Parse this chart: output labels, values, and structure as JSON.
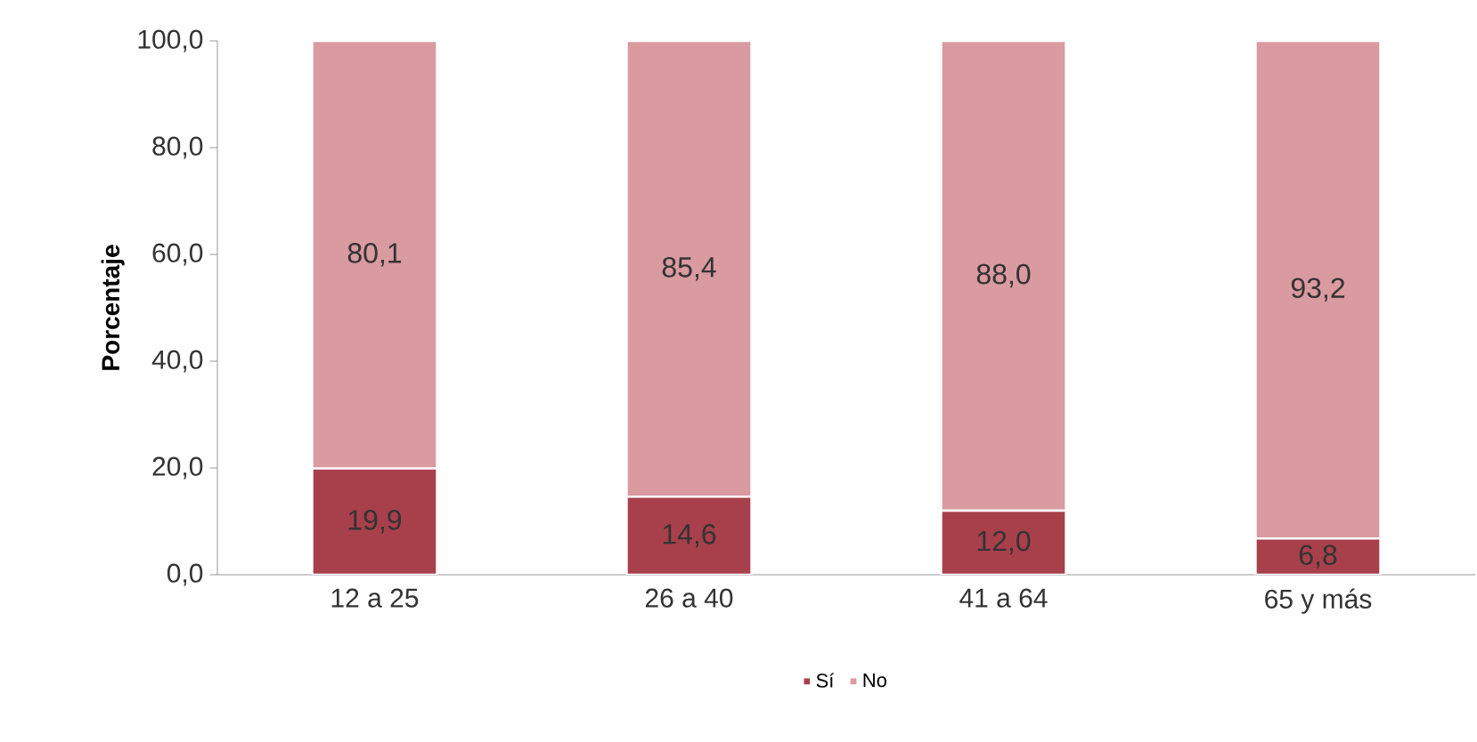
{
  "chart_data": {
    "type": "bar",
    "stacked": true,
    "ylabel": "Porcentaje",
    "categories": [
      "12 a 25",
      "26 a 40",
      "41 a 64",
      "65 y más"
    ],
    "series": [
      {
        "name": "Sí",
        "color": "#a8404c",
        "values": [
          19.9,
          14.6,
          12.0,
          6.8
        ],
        "value_labels": [
          "19,9",
          "14,6",
          "12,0",
          "6,8"
        ]
      },
      {
        "name": "No",
        "color": "#d99aa0",
        "values": [
          80.1,
          85.4,
          88.0,
          93.2
        ],
        "value_labels": [
          "80,1",
          "85,4",
          "88,0",
          "93,2"
        ]
      }
    ],
    "ylim": [
      0,
      100
    ],
    "yticks": [
      {
        "value": 0,
        "label": "0,0"
      },
      {
        "value": 20,
        "label": "20,0"
      },
      {
        "value": 40,
        "label": "40,0"
      },
      {
        "value": 60,
        "label": "60,0"
      },
      {
        "value": 80,
        "label": "80,0"
      },
      {
        "value": 100,
        "label": "100,0"
      }
    ],
    "legend": "bottom",
    "grid": false
  }
}
